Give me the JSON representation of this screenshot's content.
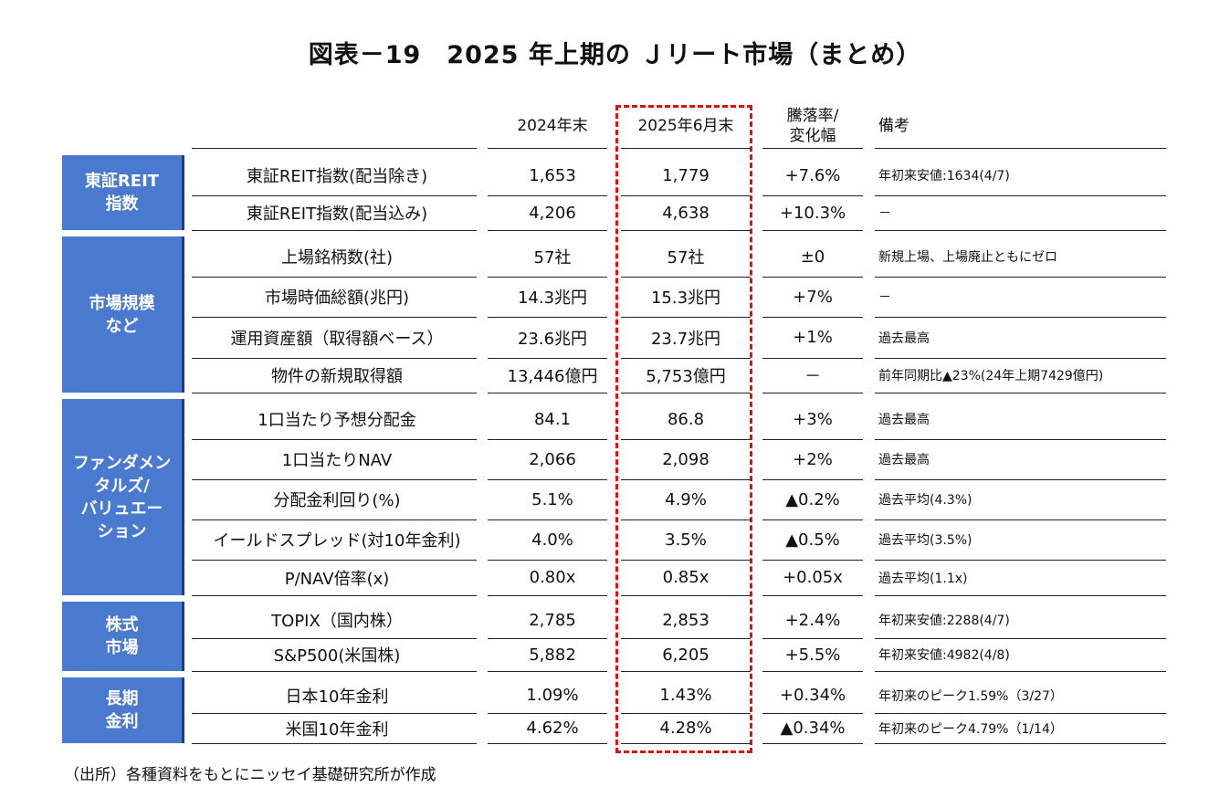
{
  "title": "図表－19　2025 年上期の Ｊリート市場（まとめ）",
  "headers": {
    "col1": "2024年末",
    "col2": "2025年6月末",
    "col3": "騰落率/\n変化幅",
    "col4": "備考"
  },
  "categories": [
    {
      "label": "東証REIT\n指数"
    },
    {
      "label": "市場規模\nなど"
    },
    {
      "label": "ファンダメン\nタルズ/\nバリュエー\nション"
    },
    {
      "label": "株式\n市場"
    },
    {
      "label": "長期\n金利"
    }
  ],
  "rows": [
    {
      "item": "東証REIT指数(配当除き)",
      "v2024": "1,653",
      "v2025": "1,779",
      "chg": "+7.6%",
      "note": "年初来安値:1634(4/7)"
    },
    {
      "item": "東証REIT指数(配当込み)",
      "v2024": "4,206",
      "v2025": "4,638",
      "chg": "+10.3%",
      "note": "－"
    },
    {
      "item": "上場銘柄数(社)",
      "v2024": "57社",
      "v2025": "57社",
      "chg": "±0",
      "note": "新規上場、上場廃止ともにゼロ"
    },
    {
      "item": "市場時価総額(兆円)",
      "v2024": "14.3兆円",
      "v2025": "15.3兆円",
      "chg": "+7%",
      "note": "－"
    },
    {
      "item": "運用資産額（取得額ベース）",
      "v2024": "23.6兆円",
      "v2025": "23.7兆円",
      "chg": "+1%",
      "note": "過去最高"
    },
    {
      "item": "物件の新規取得額",
      "v2024": "13,446億円",
      "v2025": "5,753億円",
      "chg": "－",
      "note": "前年同期比▲23%(24年上期7429億円)"
    },
    {
      "item": "1口当たり予想分配金",
      "v2024": "84.1",
      "v2025": "86.8",
      "chg": "+3%",
      "note": "過去最高"
    },
    {
      "item": "1口当たりNAV",
      "v2024": "2,066",
      "v2025": "2,098",
      "chg": "+2%",
      "note": "過去最高"
    },
    {
      "item": "分配金利回り(%)",
      "v2024": "5.1%",
      "v2025": "4.9%",
      "chg": "▲0.2%",
      "note": "過去平均(4.3%)"
    },
    {
      "item": "イールドスプレッド(対10年金利)",
      "v2024": "4.0%",
      "v2025": "3.5%",
      "chg": "▲0.5%",
      "note": "過去平均(3.5%)"
    },
    {
      "item": "P/NAV倍率(x)",
      "v2024": "0.80x",
      "v2025": "0.85x",
      "chg": "+0.05x",
      "note": "過去平均(1.1x)"
    },
    {
      "item": "TOPIX（国内株）",
      "v2024": "2,785",
      "v2025": "2,853",
      "chg": "+2.4%",
      "note": "年初来安値:2288(4/7)"
    },
    {
      "item": "S&P500(米国株)",
      "v2024": "5,882",
      "v2025": "6,205",
      "chg": "+5.5%",
      "note": "年初来安値:4982(4/8)"
    },
    {
      "item": "日本10年金利",
      "v2024": "1.09%",
      "v2025": "1.43%",
      "chg": "+0.34%",
      "note": "年初来のピーク1.59%（3/27）"
    },
    {
      "item": "米国10年金利",
      "v2024": "4.62%",
      "v2025": "4.28%",
      "chg": "▲0.34%",
      "note": "年初来のピーク4.79%（1/14）"
    }
  ],
  "source": "（出所）各種資料をもとにニッセイ基礎研究所が作成",
  "colors": {
    "category_bg": "#4a79d0",
    "highlight_border": "#e01010"
  }
}
